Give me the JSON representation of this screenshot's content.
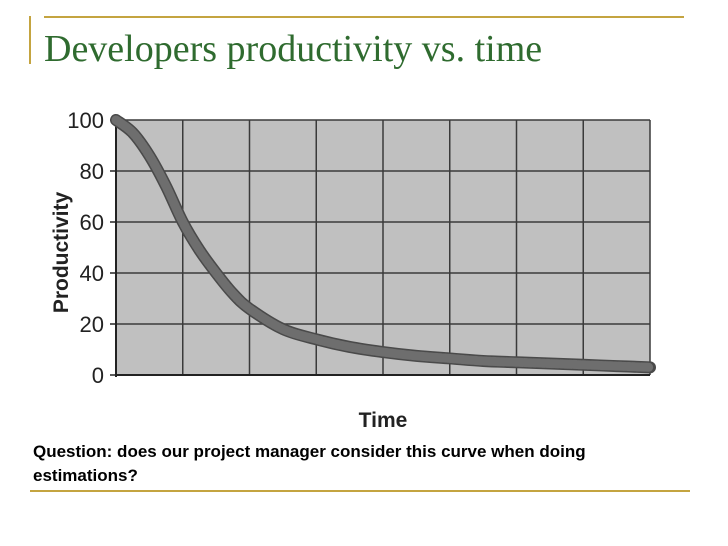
{
  "slide": {
    "title": "Developers productivity vs. time",
    "question": "Question: does our project manager consider this curve when doing estimations?",
    "accent_color": "#c4a440",
    "title_color": "#2f6b2f"
  },
  "chart_data": {
    "type": "line",
    "title": "",
    "xlabel": "Time",
    "ylabel": "Productivity",
    "ylim": [
      0,
      100
    ],
    "yticks": [
      "0",
      "20",
      "40",
      "60",
      "80",
      "100"
    ],
    "xlim": [
      0,
      8
    ],
    "grid": true,
    "background_color": "#c0c0c0",
    "series": [
      {
        "color": "#6e6e6e",
        "x": [
          0,
          0.25,
          0.5,
          0.75,
          1,
          1.25,
          1.5,
          1.75,
          2,
          2.5,
          3,
          3.5,
          4,
          4.5,
          5,
          5.5,
          6,
          6.5,
          7,
          7.5,
          8
        ],
        "y": [
          100,
          95,
          86,
          74,
          60,
          49,
          40,
          32,
          26,
          18,
          14,
          11,
          9,
          7.5,
          6.5,
          5.5,
          5,
          4.5,
          4,
          3.5,
          3
        ]
      }
    ]
  }
}
